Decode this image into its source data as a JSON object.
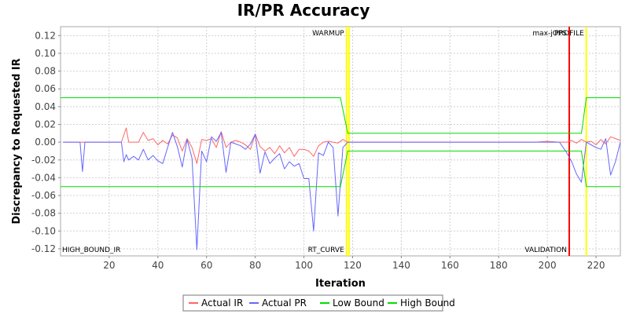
{
  "chart_data": {
    "type": "line",
    "title": "IR/PR Accuracy",
    "xlabel": "Iteration",
    "ylabel": "Discrepancy to Requested IR",
    "xlim": [
      0,
      230
    ],
    "ylim": [
      -0.128,
      0.13
    ],
    "x_ticks": [
      20,
      40,
      60,
      80,
      100,
      120,
      140,
      160,
      180,
      200,
      220
    ],
    "y_ticks": [
      0.12,
      0.1,
      0.08,
      0.06,
      0.04,
      0.02,
      0.0,
      -0.02,
      -0.04,
      -0.06,
      -0.08,
      -0.1,
      -0.12
    ],
    "y_tick_labels": [
      "0.12",
      "0.10",
      "0.08",
      "0.06",
      "0.04",
      "0.02",
      "0.00",
      "-0.02",
      "-0.04",
      "-0.06",
      "-0.08",
      "-0.10",
      "-0.12"
    ],
    "grid": true,
    "legend_position": "bottom",
    "series": [
      {
        "name": "Actual IR",
        "color": "#ff6666",
        "x": [
          1,
          5,
          10,
          15,
          20,
          25,
          27,
          28,
          30,
          32,
          34,
          36,
          38,
          40,
          42,
          44,
          46,
          48,
          50,
          52,
          54,
          56,
          58,
          60,
          62,
          64,
          66,
          68,
          70,
          72,
          74,
          76,
          78,
          80,
          82,
          84,
          86,
          88,
          90,
          92,
          94,
          96,
          98,
          100,
          102,
          104,
          106,
          108,
          110,
          112,
          114,
          116,
          118,
          120,
          125,
          130,
          135,
          140,
          145,
          150,
          155,
          160,
          165,
          170,
          175,
          180,
          185,
          190,
          195,
          200,
          205,
          208,
          210,
          212,
          214,
          216,
          218,
          220,
          222,
          224,
          226,
          228,
          230
        ],
        "y": [
          0,
          0,
          0,
          0,
          0,
          0,
          0.016,
          0,
          0,
          0,
          0.011,
          0.002,
          0.004,
          -0.003,
          0.002,
          -0.002,
          0.008,
          0.005,
          -0.01,
          0.004,
          -0.006,
          -0.024,
          0.003,
          0.002,
          0.004,
          -0.006,
          0.012,
          -0.006,
          0,
          0.002,
          0,
          -0.003,
          -0.008,
          0.009,
          -0.005,
          -0.01,
          -0.006,
          -0.013,
          -0.004,
          -0.012,
          -0.006,
          -0.016,
          -0.008,
          -0.008,
          -0.01,
          -0.016,
          -0.004,
          0,
          0.001,
          0,
          -0.001,
          0.003,
          0,
          0,
          0,
          0,
          0,
          0,
          0,
          0,
          0,
          0,
          0,
          0,
          0,
          0,
          0,
          0,
          0,
          0.001,
          0,
          0,
          0.002,
          -0.001,
          0.003,
          0,
          0.001,
          -0.003,
          0.003,
          -0.002,
          0.006,
          0.004,
          0.002
        ]
      },
      {
        "name": "Actual PR",
        "color": "#6666ff",
        "x": [
          1,
          5,
          8,
          9,
          10,
          15,
          20,
          25,
          26,
          27,
          28,
          30,
          32,
          34,
          36,
          38,
          40,
          42,
          44,
          46,
          48,
          50,
          52,
          54,
          56,
          58,
          60,
          62,
          64,
          66,
          68,
          70,
          72,
          74,
          76,
          78,
          80,
          82,
          84,
          86,
          88,
          90,
          92,
          94,
          96,
          98,
          100,
          102,
          104,
          106,
          108,
          110,
          112,
          114,
          116,
          118,
          120,
          125,
          130,
          135,
          140,
          145,
          150,
          155,
          160,
          165,
          170,
          175,
          180,
          185,
          190,
          195,
          200,
          205,
          208,
          210,
          212,
          214,
          216,
          218,
          220,
          222,
          224,
          226,
          228,
          230
        ],
        "y": [
          0,
          0,
          0,
          -0.033,
          0,
          0,
          0,
          0,
          -0.022,
          -0.014,
          -0.02,
          -0.016,
          -0.02,
          -0.008,
          -0.02,
          -0.015,
          -0.021,
          -0.024,
          -0.006,
          0.011,
          -0.005,
          -0.028,
          0.003,
          -0.018,
          -0.121,
          -0.01,
          -0.022,
          0.006,
          0.001,
          0.011,
          -0.034,
          0,
          -0.002,
          -0.004,
          -0.008,
          -0.002,
          0.009,
          -0.035,
          -0.011,
          -0.024,
          -0.018,
          -0.013,
          -0.03,
          -0.022,
          -0.027,
          -0.024,
          -0.041,
          -0.041,
          -0.1,
          -0.012,
          -0.015,
          0,
          -0.006,
          -0.083,
          -0.006,
          0,
          0,
          0,
          0,
          0,
          0,
          0,
          0,
          0,
          0,
          0,
          0,
          0,
          0,
          0,
          0,
          0,
          0,
          0,
          -0.012,
          -0.022,
          -0.036,
          -0.045,
          0,
          -0.003,
          -0.006,
          -0.008,
          0.004,
          -0.037,
          -0.022,
          0
        ]
      },
      {
        "name": "Low Bound",
        "color": "#00dd00",
        "x": [
          0,
          115,
          118,
          214,
          216,
          230
        ],
        "y": [
          -0.05,
          -0.05,
          -0.01,
          -0.01,
          -0.05,
          -0.05
        ]
      },
      {
        "name": "High Bound",
        "color": "#00dd00",
        "x": [
          0,
          115,
          118,
          214,
          216,
          230
        ],
        "y": [
          0.05,
          0.05,
          0.01,
          0.01,
          0.05,
          0.05
        ]
      }
    ],
    "markers": [
      {
        "x": 117.5,
        "label_top": "WARMUP",
        "label_bottom": "RT_CURVE",
        "color": "#ffff00"
      },
      {
        "x": 118.5,
        "label_top": "",
        "label_bottom": "",
        "color": "#ffff00"
      },
      {
        "x": 209,
        "label_top": "max-jOPS",
        "label_bottom": "VALIDATION",
        "color": "#ff0000"
      },
      {
        "x": 216,
        "label_top": "PROFILE",
        "label_bottom": "",
        "color": "#ffff00"
      }
    ],
    "corner_label": "HIGH_BOUND_IR"
  }
}
